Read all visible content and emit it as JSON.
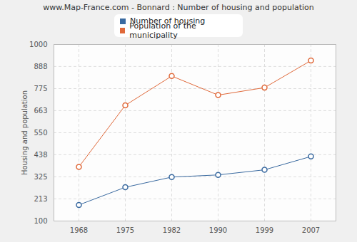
{
  "chart_data": {
    "type": "line",
    "title": "www.Map-France.com - Bonnard : Number of housing and population",
    "y_label": "Housing and population",
    "categories": [
      "1968",
      "1975",
      "1982",
      "1990",
      "1999",
      "2007"
    ],
    "series": [
      {
        "name": "Number of housing",
        "color": "#3a6aa0",
        "values": [
          182,
          272,
          324,
          335,
          361,
          429
        ]
      },
      {
        "name": "Population of the municipality",
        "color": "#e0693a",
        "values": [
          376,
          690,
          839,
          742,
          780,
          918
        ]
      }
    ],
    "ylim": [
      100,
      1000
    ],
    "yticks": [
      100,
      213,
      325,
      438,
      550,
      663,
      775,
      888,
      1000
    ],
    "grid": true,
    "marker": "circle"
  }
}
